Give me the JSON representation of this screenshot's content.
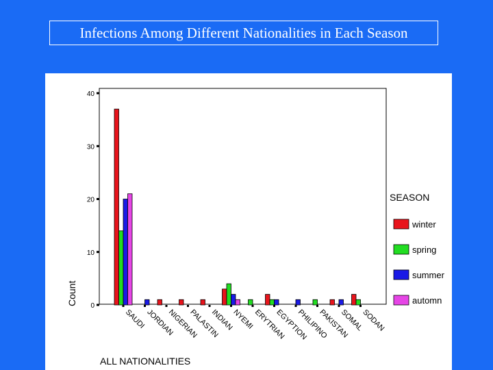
{
  "title": "Infections Among Different Nationalities in Each Season",
  "chart_data": {
    "type": "bar",
    "title": "Infections Among Different Nationalities in Each Season",
    "xlabel": "ALL NATIONALITIES",
    "ylabel": "Count",
    "ylim": [
      0,
      40
    ],
    "yticks": [
      0,
      10,
      20,
      30,
      40
    ],
    "categories": [
      "SAUDI",
      "JORDIAN",
      "NIGERIAN",
      "PALASTIN",
      "INDIAN",
      "NYEMI",
      "ERYTRIAN",
      "EGYPTION",
      "PHILIPINO",
      "PAKISTAN",
      "SOMAL",
      "SODAN"
    ],
    "legend_title": "SEASON",
    "legend_position": "right",
    "series": [
      {
        "name": "winter",
        "color": "#e8141c",
        "values": [
          37,
          0,
          1,
          1,
          1,
          3,
          0,
          2,
          0,
          0,
          1,
          2
        ]
      },
      {
        "name": "spring",
        "color": "#22dd22",
        "values": [
          14,
          0,
          0,
          0,
          0,
          4,
          1,
          1,
          0,
          1,
          0,
          1
        ]
      },
      {
        "name": "summer",
        "color": "#1a1ae6",
        "values": [
          20,
          1,
          0,
          0,
          0,
          2,
          0,
          1,
          1,
          0,
          1,
          0
        ]
      },
      {
        "name": "automn",
        "color": "#e645e6",
        "values": [
          21,
          0,
          0,
          0,
          0,
          1,
          0,
          0,
          0,
          0,
          0,
          0
        ]
      }
    ]
  }
}
